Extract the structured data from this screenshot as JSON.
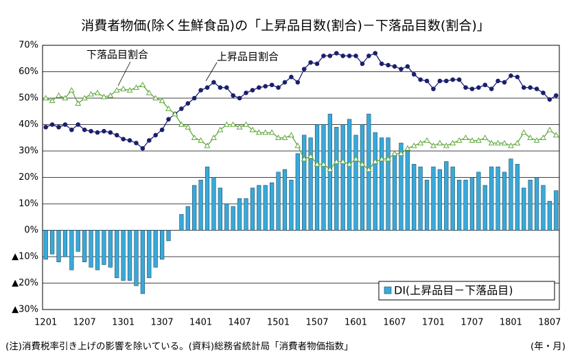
{
  "chart_data": {
    "type": "bar_line",
    "title": "消費者物価(除く生鮮食品)の「上昇品目数(割合)－下落品目数(割合)」",
    "note": "(注)消費税率引き上げの影響を除いている。(資料)総務省統計局「消費者物価指数」",
    "x_unit": "(年・月)",
    "categories": [
      "1201",
      null,
      null,
      null,
      null,
      null,
      "1207",
      null,
      null,
      null,
      null,
      null,
      "1301",
      null,
      null,
      null,
      null,
      null,
      "1307",
      null,
      null,
      null,
      null,
      null,
      "1401",
      null,
      null,
      null,
      null,
      null,
      "1407",
      null,
      null,
      null,
      null,
      null,
      "1501",
      null,
      null,
      null,
      null,
      null,
      "1507",
      null,
      null,
      null,
      null,
      null,
      "1601",
      null,
      null,
      null,
      null,
      null,
      "1607",
      null,
      null,
      null,
      null,
      null,
      "1701",
      null,
      null,
      null,
      null,
      null,
      "1707",
      null,
      null,
      null,
      null,
      null,
      "1801",
      null,
      null,
      null,
      null,
      null,
      "1807",
      null
    ],
    "ylim": [
      -30,
      70
    ],
    "yticks": [
      {
        "value": 70,
        "label": "70%"
      },
      {
        "value": 60,
        "label": "60%"
      },
      {
        "value": 50,
        "label": "50%"
      },
      {
        "value": 40,
        "label": "40%"
      },
      {
        "value": 30,
        "label": "30%"
      },
      {
        "value": 20,
        "label": "20%"
      },
      {
        "value": 10,
        "label": "10%"
      },
      {
        "value": 0,
        "label": "0%"
      },
      {
        "value": -10,
        "label": "▲10%"
      },
      {
        "value": -20,
        "label": "▲20%"
      },
      {
        "value": -30,
        "label": "▲30%"
      }
    ],
    "grid": true,
    "legend": "lower right",
    "series": [
      {
        "name": "DI(上昇品目－下落品目)",
        "kind": "bar",
        "color": "#39a9d9",
        "values": [
          -11,
          -9,
          -12,
          -10,
          -15,
          -8,
          -12,
          -14,
          -15,
          -13,
          -14,
          -18,
          -19,
          -19,
          -21,
          -24,
          -18,
          -14,
          -11,
          -4,
          0,
          6,
          9,
          17,
          19,
          24,
          20,
          16,
          10,
          9,
          12,
          12,
          16,
          17,
          17,
          18,
          22,
          23,
          19,
          29,
          36,
          35,
          40,
          40,
          44,
          39,
          40,
          42,
          36,
          40,
          44,
          37,
          35,
          35,
          29,
          33,
          30,
          25,
          24,
          19,
          24,
          23,
          26,
          24,
          19,
          19,
          20,
          22,
          17,
          24,
          24,
          22,
          27,
          25,
          16,
          19,
          20,
          17,
          11,
          15
        ]
      },
      {
        "name": "上昇品目割合",
        "kind": "line",
        "color": "#1b1f6e",
        "values": [
          39,
          40,
          39,
          40,
          38,
          40,
          38,
          37.5,
          37,
          37.5,
          37,
          36,
          34.5,
          34,
          33,
          31,
          34,
          36,
          38,
          42,
          44,
          46,
          48,
          50,
          53,
          54,
          56,
          54,
          54,
          51,
          50,
          52,
          53,
          54,
          54.5,
          55,
          54,
          56,
          58,
          56,
          61,
          63.5,
          63,
          66,
          66,
          67,
          66,
          66,
          66,
          63,
          66,
          67,
          63,
          62.5,
          62,
          61,
          62,
          59,
          57,
          56.5,
          53.5,
          56.5,
          56.5,
          57,
          57,
          54,
          53.5,
          54,
          55,
          53.5,
          56.5,
          56,
          58.5,
          58,
          54,
          54,
          53.5,
          52,
          49.5,
          51
        ]
      },
      {
        "name": "下落品目割合",
        "kind": "line",
        "color": "#5fa83a",
        "values": [
          50,
          49,
          51,
          50,
          53,
          48,
          50,
          51.5,
          52,
          50.5,
          51,
          53,
          53.5,
          53,
          54,
          55,
          52,
          50,
          49,
          46,
          44,
          40,
          39,
          35,
          34,
          32,
          35,
          38,
          40,
          40,
          39,
          40,
          38,
          37,
          37,
          37,
          35,
          35,
          36,
          32,
          27,
          28,
          25,
          25,
          23,
          26,
          26,
          25,
          27,
          25,
          23,
          26,
          27,
          27,
          29,
          29,
          31,
          32,
          33,
          34,
          32,
          33,
          32,
          33,
          34,
          35,
          34,
          34,
          35,
          33,
          33,
          33,
          32,
          33,
          37,
          35,
          34,
          35,
          38,
          36
        ]
      }
    ]
  }
}
